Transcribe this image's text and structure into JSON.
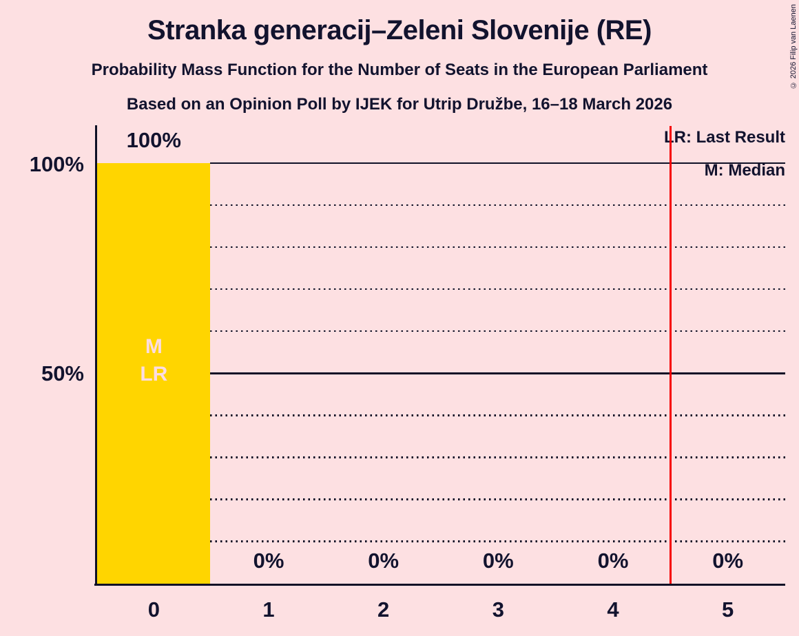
{
  "title": "Stranka generacij–Zeleni Slovenije (RE)",
  "subtitle": "Probability Mass Function for the Number of Seats in the European Parliament",
  "poll_info": "Based on an Opinion Poll by IJEK for Utrip Družbe, 16–18 March 2026",
  "copyright": "© 2026 Filip van Laenen",
  "legend": {
    "last_result": "LR: Last Result",
    "median": "M: Median"
  },
  "y_axis_labels": [
    "100%",
    "50%"
  ],
  "colors": {
    "background": "#fde0e2",
    "text": "#12132e",
    "axis": "#0f1126",
    "bar": "#ffd500",
    "bar_annotation_text": "#fbdce2",
    "red_line": "#f60000"
  },
  "chart_data": {
    "type": "bar",
    "categories": [
      "0",
      "1",
      "2",
      "3",
      "4",
      "5"
    ],
    "values": [
      100,
      0,
      0,
      0,
      0,
      0
    ],
    "bar_value_labels": [
      "100%",
      "0%",
      "0%",
      "0%",
      "0%",
      "0%"
    ],
    "ylim": [
      0,
      100
    ],
    "y_tick_labels": [
      "100%",
      "50%"
    ],
    "gridlines_solid_pct": [
      100,
      50
    ],
    "gridlines_dotted_pct": [
      90,
      80,
      70,
      60,
      40,
      30,
      20,
      10
    ],
    "bar_color": "#ffd500",
    "median_seats": 0,
    "last_result_seats": 0,
    "bar_annotation": {
      "bar_index": 0,
      "lines": [
        "M",
        "LR"
      ]
    },
    "red_line": {
      "seat_position": 4.5,
      "color": "#f60000"
    },
    "legend_position": "top-right",
    "grid": true
  }
}
